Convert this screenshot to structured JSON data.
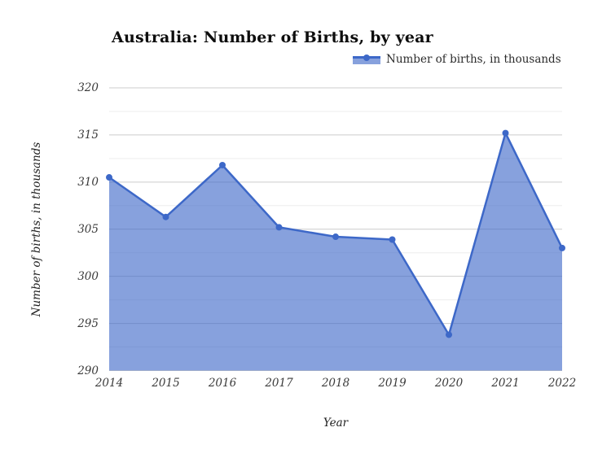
{
  "chart": {
    "title": "Australia: Number of Births, by year",
    "legend": {
      "label": "Number of births, in thousands"
    },
    "colors": {
      "series_line": "#3d68c8",
      "series_fill": "#3d68c8",
      "series_fill_opacity": 0.62,
      "major_gridline": "#cccccc",
      "minor_gridline": "#ededed",
      "tick_text": "#3a3a3a",
      "title_text": "#0d0d0d"
    }
  },
  "chart_data": {
    "type": "area",
    "x": [
      2014,
      2015,
      2016,
      2017,
      2018,
      2019,
      2020,
      2021,
      2022
    ],
    "series": [
      {
        "name": "Number of births, in thousands",
        "values": [
          310.5,
          306.3,
          311.8,
          305.2,
          304.2,
          303.9,
          293.8,
          315.2,
          303.0
        ]
      }
    ],
    "title": "Australia: Number of Births, by year",
    "xlabel": "Year",
    "ylabel": "Number of births, in thousands",
    "ylim": [
      290,
      320
    ],
    "y_major_step": 5,
    "y_minor_step": 2.5,
    "grid": true,
    "legend_position": "top-right",
    "markers": true
  }
}
